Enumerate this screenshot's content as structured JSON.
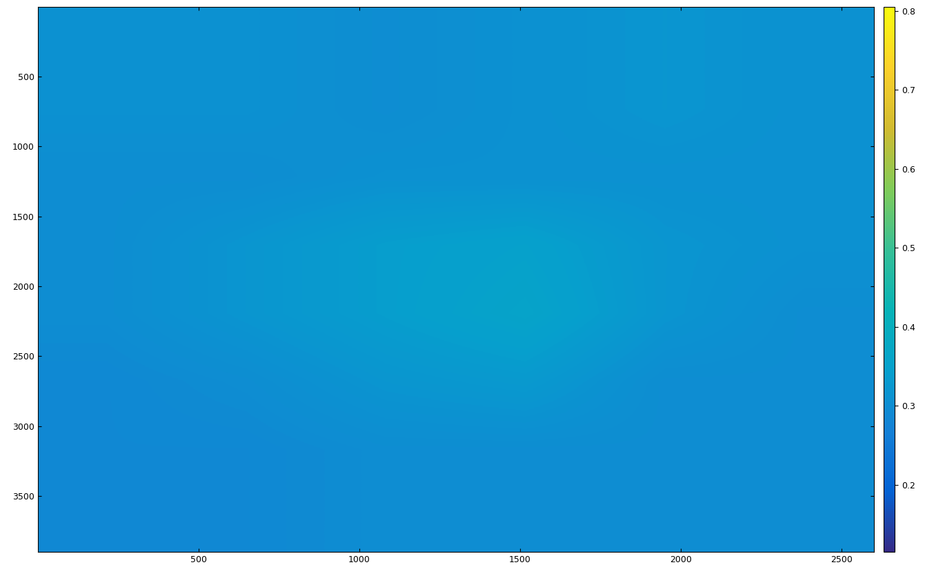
{
  "chart_data": {
    "type": "heatmap",
    "xlim": [
      0.5,
      2600.5
    ],
    "ylim": [
      3900.5,
      0.5
    ],
    "xticks": [
      500,
      1000,
      1500,
      2000,
      2500
    ],
    "yticks": [
      500,
      1000,
      1500,
      2000,
      2500,
      3000,
      3500
    ],
    "cells": [
      [
        0.31,
        0.31,
        0.3,
        0.31,
        0.32,
        0.31
      ],
      [
        0.31,
        0.31,
        0.3,
        0.31,
        0.32,
        0.31
      ],
      [
        0.3,
        0.3,
        0.31,
        0.31,
        0.31,
        0.31
      ],
      [
        0.3,
        0.32,
        0.34,
        0.35,
        0.32,
        0.31
      ],
      [
        0.3,
        0.32,
        0.34,
        0.36,
        0.32,
        0.3
      ],
      [
        0.29,
        0.3,
        0.32,
        0.33,
        0.3,
        0.3
      ],
      [
        0.29,
        0.29,
        0.3,
        0.3,
        0.3,
        0.3
      ],
      [
        0.29,
        0.29,
        0.3,
        0.3,
        0.3,
        0.3
      ]
    ],
    "colorbar_range": [
      0.115,
      0.805
    ],
    "colorbar_ticks": [
      0.2,
      0.3,
      0.4,
      0.5,
      0.6,
      0.7,
      0.8
    ]
  }
}
